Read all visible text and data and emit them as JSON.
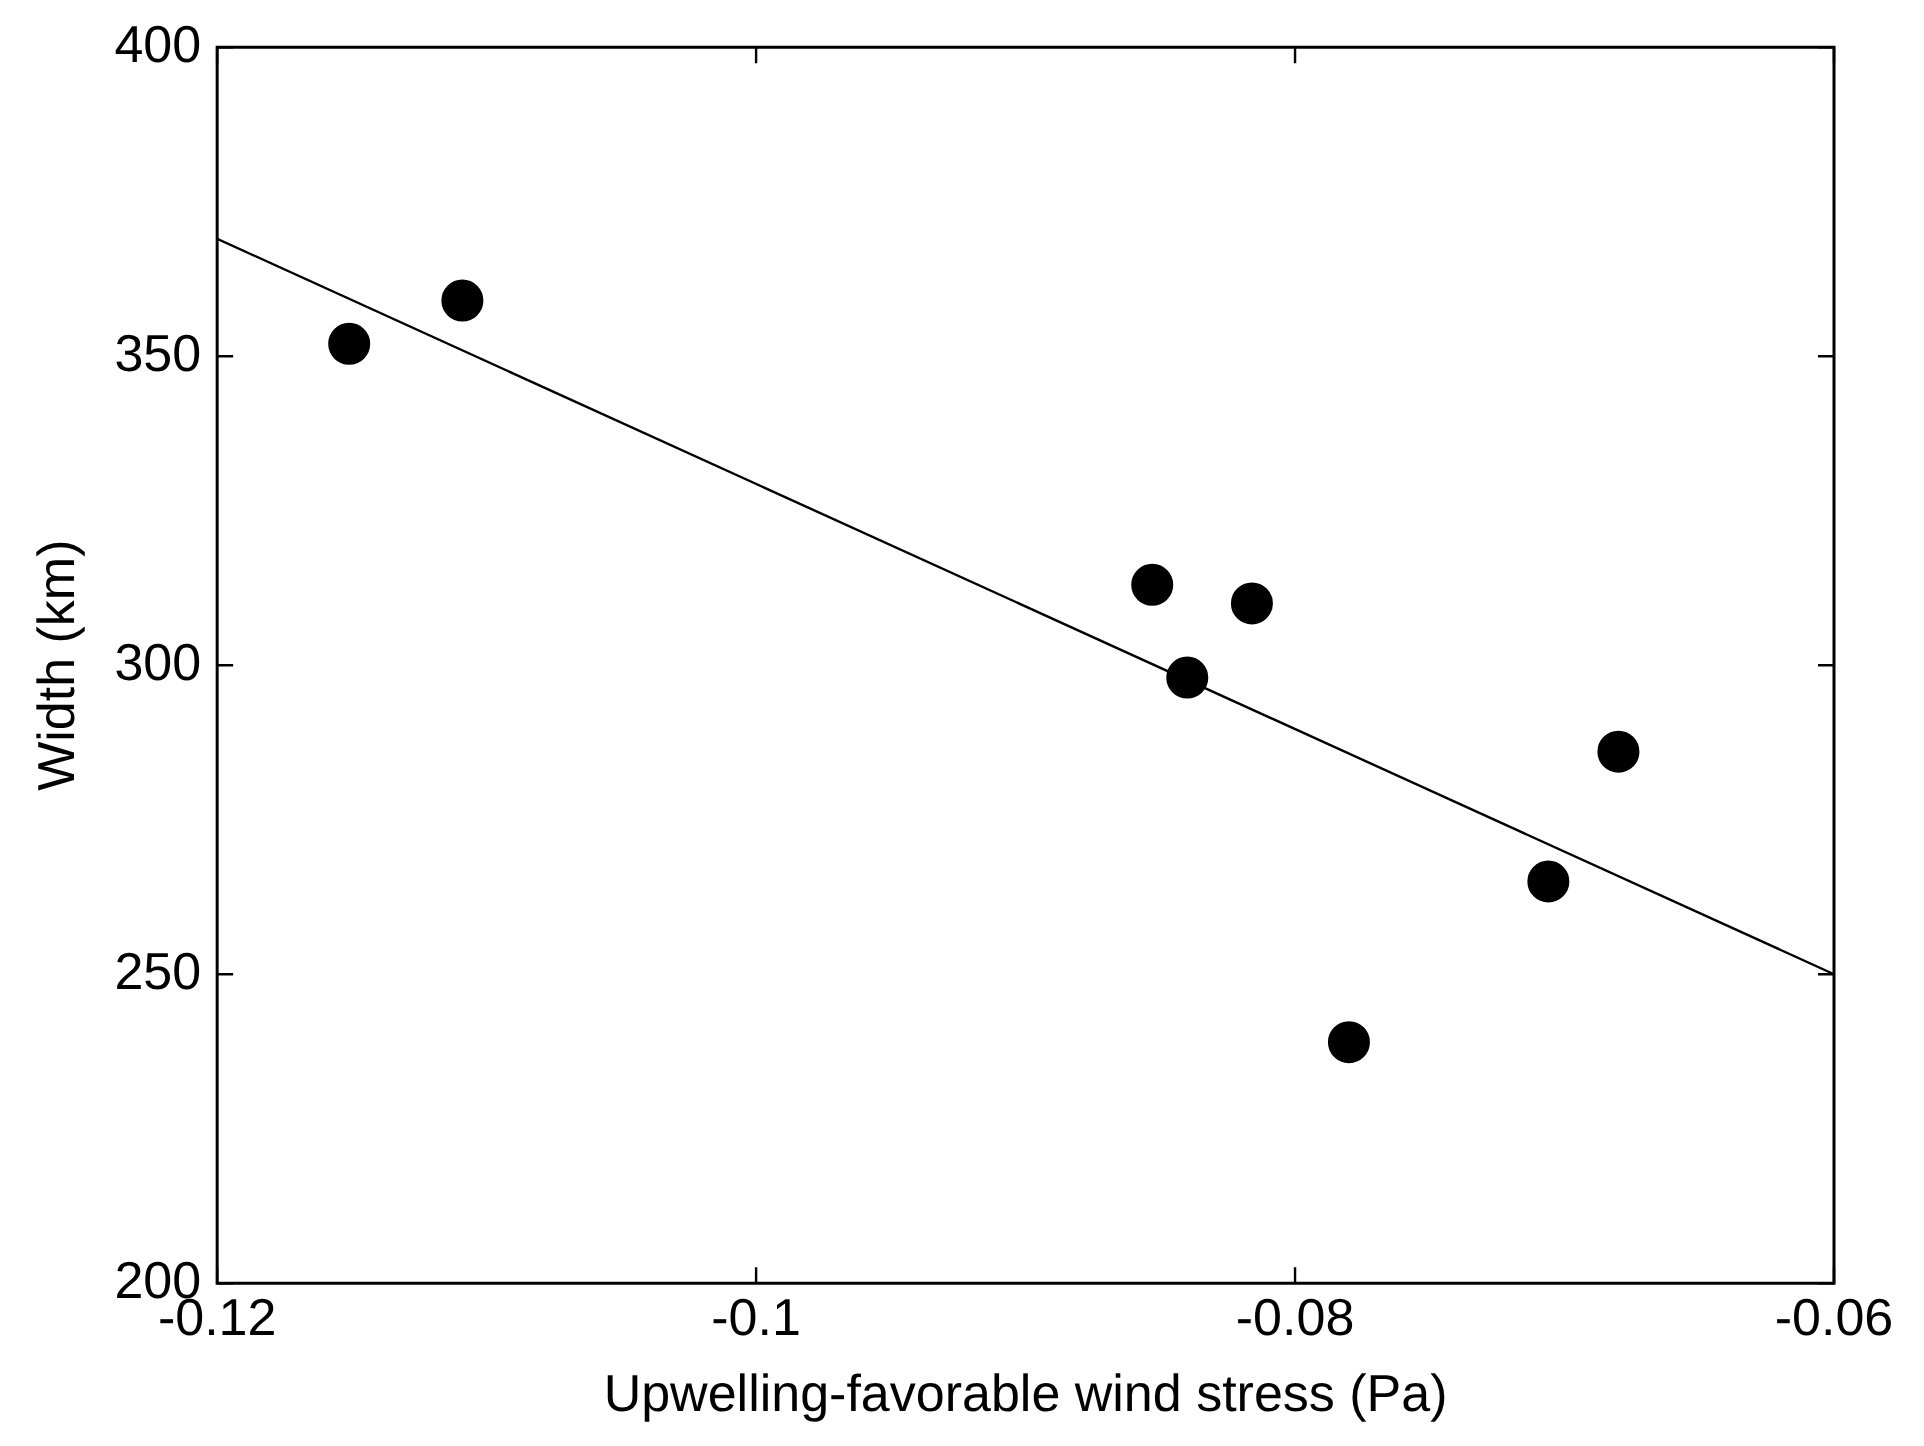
{
  "chart_data": {
    "type": "scatter",
    "xlabel": "Upwelling-favorable wind stress (Pa)",
    "ylabel": "Width (km)",
    "xlim": [
      -0.12,
      -0.06
    ],
    "xticks": [
      -0.12,
      -0.1,
      -0.08,
      -0.06
    ],
    "ylim": [
      200,
      400
    ],
    "yticks": [
      200,
      250,
      300,
      350,
      400
    ],
    "grid": false,
    "legend": false,
    "marker": "circle",
    "series": [
      {
        "color": "#000000",
        "x": [
          -0.1151,
          -0.1109,
          -0.0853,
          -0.0816,
          -0.084,
          -0.068,
          -0.0706,
          -0.078
        ],
        "values": [
          352,
          359,
          313,
          310,
          298,
          286,
          265,
          239
        ]
      },
      {
        "type": "line",
        "color": "#000000",
        "marker": "none",
        "line_style": "solid",
        "x": [
          -0.12,
          -0.06
        ],
        "values": [
          369,
          250
        ]
      }
    ]
  }
}
